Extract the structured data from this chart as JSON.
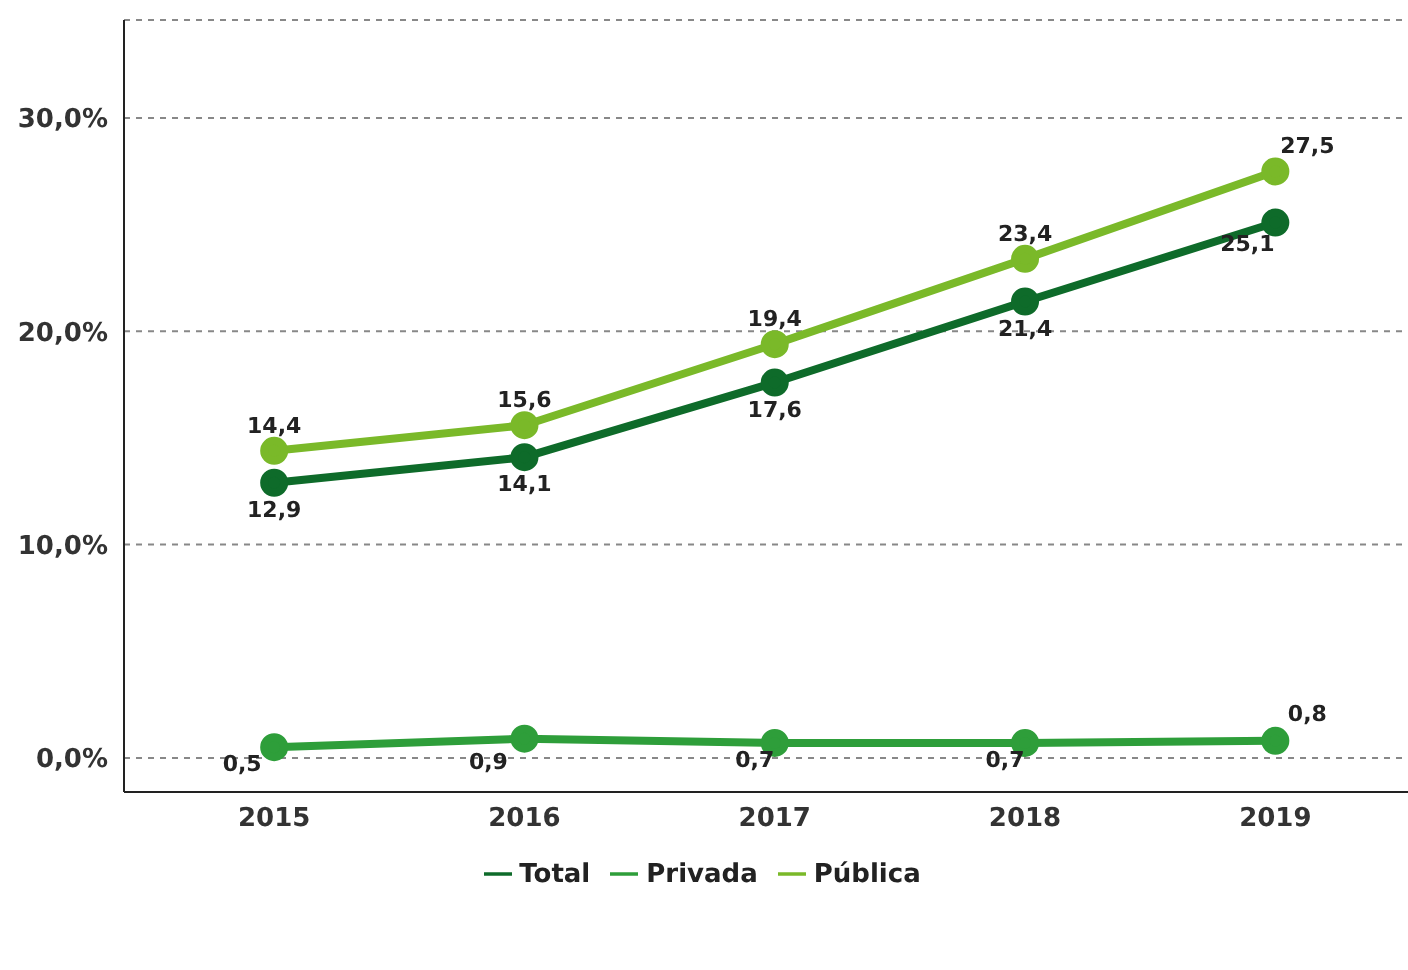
{
  "chart_data": {
    "type": "line",
    "categories": [
      "2015",
      "2016",
      "2017",
      "2018",
      "2019"
    ],
    "series": [
      {
        "name": "Total",
        "color": "#0e6b2a",
        "values": [
          12.9,
          14.1,
          17.6,
          21.4,
          25.1
        ],
        "value_labels": [
          "12,9",
          "14,1",
          "17,6",
          "21,4",
          "25,1"
        ]
      },
      {
        "name": "Privada",
        "color": "#2e9e3a",
        "values": [
          0.5,
          0.9,
          0.7,
          0.7,
          0.8
        ],
        "value_labels": [
          "0,5",
          "0,9",
          "0,7",
          "0,7",
          "0,8"
        ]
      },
      {
        "name": "Pública",
        "color": "#7ab929",
        "values": [
          14.4,
          15.6,
          19.4,
          23.4,
          27.5
        ],
        "value_labels": [
          "14,4",
          "15,6",
          "19,4",
          "23,4",
          "27,5"
        ]
      }
    ],
    "ylim": [
      -1.6,
      34.6
    ],
    "yticks": [
      {
        "value": 0,
        "label": "0,0%"
      },
      {
        "value": 10,
        "label": "10,0%"
      },
      {
        "value": 20,
        "label": "20,0%"
      },
      {
        "value": 30,
        "label": "30,0%"
      }
    ],
    "grid": "y",
    "legend": "bottom",
    "marker": "circle",
    "line_style": "solid"
  }
}
